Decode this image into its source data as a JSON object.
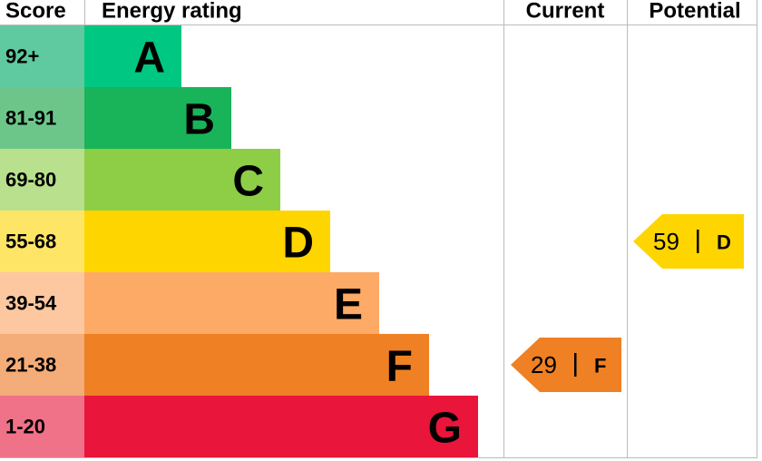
{
  "header": {
    "score": "Score",
    "rating": "Energy rating",
    "current": "Current",
    "potential": "Potential"
  },
  "bands": [
    {
      "score": "92+",
      "letter": "A",
      "color": "#00c781",
      "score_color": "#5fcaa0"
    },
    {
      "score": "81-91",
      "letter": "B",
      "color": "#19b459",
      "score_color": "#6cc68a"
    },
    {
      "score": "69-80",
      "letter": "C",
      "color": "#8dce46",
      "score_color": "#b9e08c"
    },
    {
      "score": "55-68",
      "letter": "D",
      "color": "#ffd500",
      "score_color": "#ffe566"
    },
    {
      "score": "39-54",
      "letter": "E",
      "color": "#fcaa65",
      "score_color": "#fdc8a0"
    },
    {
      "score": "21-38",
      "letter": "F",
      "color": "#ef8023",
      "score_color": "#f4ac78"
    },
    {
      "score": "1-20",
      "letter": "G",
      "color": "#e9153b",
      "score_color": "#f07288"
    }
  ],
  "current": {
    "value": 29,
    "rating": "F"
  },
  "potential": {
    "value": 59,
    "rating": "D"
  }
}
